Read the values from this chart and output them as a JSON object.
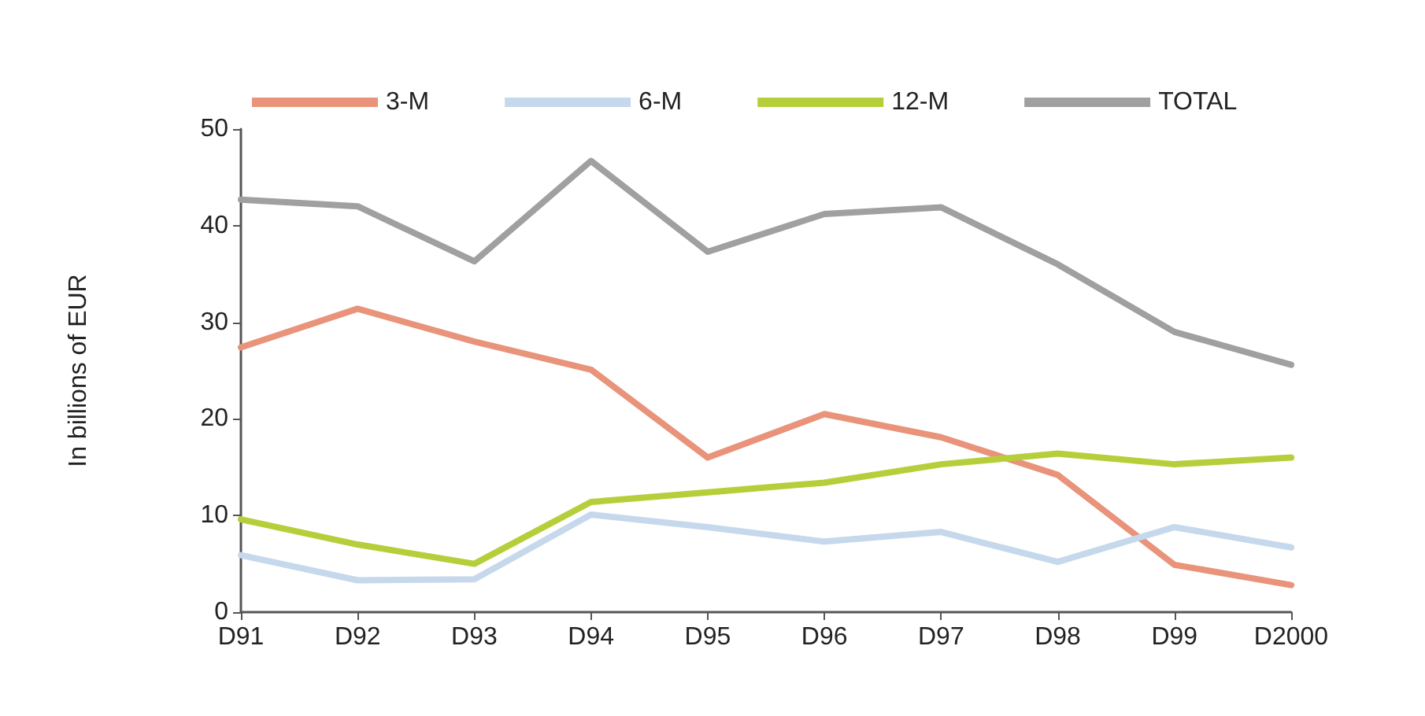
{
  "chart_data": {
    "type": "line",
    "ylabel": "In billions of EUR",
    "categories": [
      "D91",
      "D92",
      "D93",
      "D94",
      "D95",
      "D96",
      "D97",
      "D98",
      "D99",
      "D2000"
    ],
    "series": [
      {
        "name": "3-M",
        "color": "#e8937a",
        "values": [
          27.4,
          31.4,
          28.0,
          25.1,
          16.0,
          20.5,
          18.1,
          14.2,
          4.9,
          2.8
        ]
      },
      {
        "name": "6-M",
        "color": "#c5d8ec",
        "values": [
          5.9,
          3.3,
          3.4,
          10.1,
          8.8,
          7.3,
          8.3,
          5.2,
          8.8,
          6.7
        ]
      },
      {
        "name": "12-M",
        "color": "#b5cf3a",
        "values": [
          9.6,
          7.0,
          5.0,
          11.4,
          12.4,
          13.4,
          15.3,
          16.4,
          15.3,
          16.0
        ]
      },
      {
        "name": "TOTAL",
        "color": "#a0a0a0",
        "values": [
          42.7,
          42.0,
          36.3,
          46.7,
          37.3,
          41.2,
          41.9,
          36.0,
          29.0,
          25.6
        ]
      }
    ],
    "ylim": [
      0,
      50
    ],
    "yticks": [
      0,
      10,
      20,
      30,
      40,
      50
    ],
    "grid": false,
    "legend": "top",
    "marker": "none",
    "line_style": "solid"
  }
}
